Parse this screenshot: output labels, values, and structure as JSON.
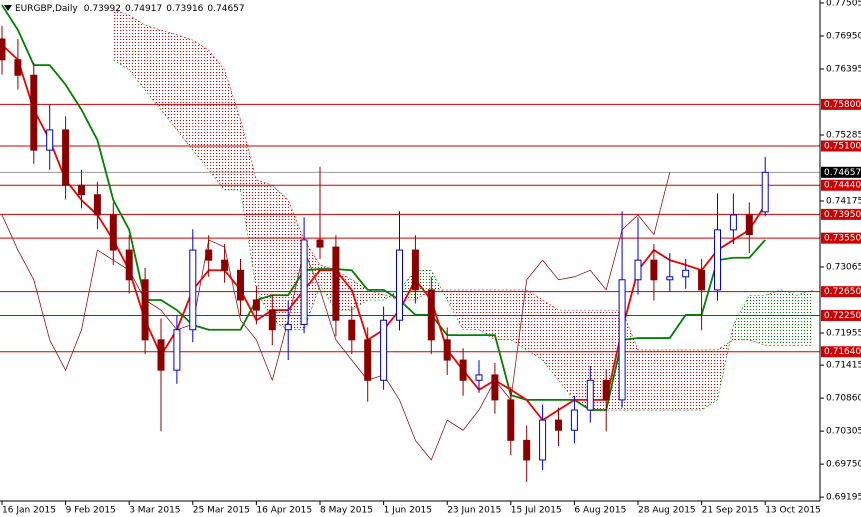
{
  "chart_data": {
    "type": "candlestick",
    "title": "EURGBP,Daily",
    "categories": [
      "16 Jan 2015",
      null,
      null,
      null,
      "9 Feb 2015",
      null,
      null,
      null,
      "3 Mar 2015",
      null,
      null,
      null,
      "25 Mar 2015",
      null,
      null,
      null,
      "16 Apr 2015",
      null,
      null,
      null,
      "8 May 2015",
      null,
      null,
      null,
      "1 Jun 2015",
      null,
      null,
      null,
      "23 Jun 2015",
      null,
      null,
      null,
      "15 Jul 2015",
      null,
      null,
      null,
      "6 Aug 2015",
      null,
      null,
      null,
      "28 Aug 2015",
      null,
      null,
      null,
      "21 Sep 2015",
      null,
      null,
      null,
      "13 Oct 2015",
      null,
      null,
      null
    ],
    "open": [
      0.769,
      0.7655,
      0.7629,
      0.7503,
      0.7537,
      0.7444,
      0.7428,
      0.7394,
      0.7335,
      0.7285,
      0.7184,
      0.7133,
      0.7201,
      0.7335,
      0.7318,
      0.7301,
      0.7251,
      0.7234,
      0.7201,
      0.721,
      0.7352,
      0.734,
      0.7217,
      0.7184,
      0.7116,
      0.7217,
      0.7335,
      0.7268,
      0.7184,
      0.715,
      0.7116,
      0.7125,
      0.7083,
      0.7015,
      0.6982,
      0.7049,
      0.7032,
      0.7066,
      0.7116,
      0.7083,
      0.7285,
      0.7318,
      0.7285,
      0.729,
      0.7301,
      0.7268,
      0.7369,
      0.7394,
      0.73992,
      null,
      null,
      null
    ],
    "high": [
      0.7712,
      0.769,
      0.765,
      0.758,
      0.756,
      0.747,
      0.745,
      0.7415,
      0.736,
      0.7305,
      0.722,
      0.7225,
      0.737,
      0.736,
      0.7345,
      0.732,
      0.7275,
      0.726,
      0.725,
      0.739,
      0.7475,
      0.736,
      0.724,
      0.7205,
      0.724,
      0.74,
      0.736,
      0.729,
      0.7205,
      0.717,
      0.715,
      0.7145,
      0.7105,
      0.704,
      0.7075,
      0.707,
      0.709,
      0.714,
      0.7135,
      0.74,
      0.739,
      0.7345,
      0.733,
      0.732,
      0.732,
      0.743,
      0.743,
      0.7415,
      0.74917,
      null,
      null,
      null
    ],
    "low": [
      0.763,
      0.7605,
      0.748,
      0.747,
      0.742,
      0.7405,
      0.737,
      0.731,
      0.7262,
      0.716,
      0.703,
      0.711,
      0.718,
      0.729,
      0.728,
      0.7225,
      0.721,
      0.7175,
      0.715,
      0.7195,
      0.732,
      0.719,
      0.716,
      0.708,
      0.71,
      0.72,
      0.7245,
      0.716,
      0.7125,
      0.709,
      0.7095,
      0.706,
      0.699,
      0.6945,
      0.6965,
      0.7005,
      0.701,
      0.7045,
      0.703,
      0.707,
      0.726,
      0.725,
      0.7265,
      0.727,
      0.72,
      0.725,
      0.7345,
      0.733,
      0.73916,
      null,
      null,
      null
    ],
    "close": [
      0.7655,
      0.7629,
      0.7503,
      0.7537,
      0.7444,
      0.7428,
      0.7394,
      0.7335,
      0.7285,
      0.7184,
      0.7133,
      0.7201,
      0.7335,
      0.7318,
      0.7301,
      0.7251,
      0.7234,
      0.7201,
      0.721,
      0.7352,
      0.734,
      0.7217,
      0.7184,
      0.7116,
      0.7217,
      0.7335,
      0.7268,
      0.7184,
      0.715,
      0.7116,
      0.7125,
      0.7083,
      0.7015,
      0.6982,
      0.7049,
      0.7032,
      0.7066,
      0.7116,
      0.7083,
      0.7285,
      0.7318,
      0.7285,
      0.729,
      0.7301,
      0.7268,
      0.7369,
      0.7394,
      0.7361,
      0.74657,
      null,
      null,
      null
    ],
    "up_color": "#0000cd",
    "down_color": "#8b0000",
    "tenkan": {
      "color": "#ee0000",
      "values": [
        0.768,
        0.7655,
        0.7571,
        0.752,
        0.7453,
        0.7419,
        0.7394,
        0.7352,
        0.7301,
        0.7217,
        0.7158,
        0.7201,
        0.7268,
        0.7301,
        0.7301,
        0.7268,
        0.7217,
        0.7234,
        0.7234,
        0.7268,
        0.7301,
        0.7301,
        0.7268,
        0.7184,
        0.7201,
        0.7234,
        0.7285,
        0.7251,
        0.7167,
        0.7133,
        0.71,
        0.7116,
        0.71,
        0.7083,
        0.7049,
        0.7066,
        0.7083,
        0.7083,
        0.7083,
        0.7201,
        0.7301,
        0.7335,
        0.7318,
        0.731,
        0.7301,
        0.7335,
        0.7352,
        0.7369,
        0.7411,
        null,
        null,
        null
      ]
    },
    "kijun": {
      "color": "#008000",
      "values": [
        0.7747,
        0.7705,
        0.7646,
        0.7646,
        0.7613,
        0.7571,
        0.752,
        0.7419,
        0.7369,
        0.7251,
        0.7251,
        0.7234,
        0.7209,
        0.7201,
        0.7201,
        0.7201,
        0.7251,
        0.7259,
        0.7259,
        0.7301,
        0.7303,
        0.7303,
        0.7301,
        0.7268,
        0.7268,
        0.7251,
        0.7226,
        0.7226,
        0.7192,
        0.7192,
        0.7192,
        0.7192,
        0.7091,
        0.7083,
        0.7083,
        0.7083,
        0.7083,
        0.7066,
        0.7066,
        0.7184,
        0.7187,
        0.7187,
        0.7187,
        0.7226,
        0.7226,
        0.7318,
        0.7322,
        0.7322,
        0.7352,
        null,
        null,
        null
      ]
    },
    "chikou": {
      "color": "#8b1a1a",
      "values": [
        0.7394,
        0.7335,
        0.7285,
        0.7184,
        0.7133,
        0.7201,
        0.7335,
        0.7318,
        0.7301,
        0.7251,
        0.7234,
        0.7201,
        0.721,
        0.7352,
        0.734,
        0.7217,
        0.7184,
        0.7116,
        0.7217,
        0.7335,
        0.7268,
        0.7184,
        0.715,
        0.7116,
        0.7125,
        0.7083,
        0.7015,
        0.6982,
        0.7049,
        0.7032,
        0.7066,
        0.7116,
        0.7083,
        0.7285,
        0.7318,
        0.7285,
        0.729,
        0.7301,
        0.7268,
        0.7369,
        0.7394,
        0.7361,
        0.74657,
        null,
        null,
        null,
        null,
        null,
        null,
        null,
        null,
        null
      ]
    },
    "cloud": {
      "spanA": [
        null,
        null,
        null,
        null,
        null,
        null,
        null,
        0.7655,
        0.7638,
        0.7604,
        0.7571,
        0.7537,
        0.7503,
        0.747,
        0.7436,
        0.7436,
        0.7268,
        0.7217,
        0.7201,
        0.7201,
        0.7276,
        0.7234,
        0.7234,
        0.7251,
        0.7251,
        0.7268,
        0.7301,
        0.7301,
        0.7251,
        0.7201,
        0.7201,
        0.7184,
        0.7184,
        0.7167,
        0.715,
        0.7116,
        0.7083,
        0.7066,
        0.7066,
        0.7066,
        0.7066,
        0.7066,
        0.7066,
        0.7066,
        0.7066,
        0.7083,
        0.7209,
        0.7259,
        0.7259,
        0.7268,
        0.7259,
        0.7268
      ],
      "spanB": [
        null,
        null,
        null,
        null,
        null,
        null,
        null,
        0.7739,
        0.773,
        0.7713,
        0.7705,
        0.7697,
        0.7688,
        0.7671,
        0.7638,
        0.7554,
        0.7453,
        0.7444,
        0.7419,
        0.7352,
        0.731,
        0.7301,
        0.7285,
        0.7268,
        0.726,
        0.7251,
        0.7251,
        0.7268,
        0.7268,
        0.7268,
        0.7268,
        0.7268,
        0.7268,
        0.7268,
        0.7251,
        0.7234,
        0.7234,
        0.7234,
        0.7234,
        0.7234,
        0.7167,
        0.7167,
        0.7167,
        0.7167,
        0.7167,
        0.7167,
        0.7184,
        0.7184,
        0.7175,
        0.7175,
        0.7175,
        0.7175
      ],
      "up_color": "#008000",
      "down_color": "#dd0000"
    },
    "levels": [
      {
        "value": 0.758,
        "label": "0.75800"
      },
      {
        "value": 0.751,
        "label": "0.75100"
      },
      {
        "value": 0.7444,
        "label": "0.74440"
      },
      {
        "value": 0.7395,
        "label": "0.73950"
      },
      {
        "value": 0.7355,
        "label": "0.73550"
      },
      {
        "value": 0.7265,
        "label": "0.72650"
      },
      {
        "value": 0.7225,
        "label": "0.72250"
      },
      {
        "value": 0.7164,
        "label": "0.71640"
      }
    ],
    "level_color": "#cc0000",
    "ylim": [
      0.6913,
      0.77555
    ],
    "yticks": [
      0.77505,
      {
        "value": 0.7695,
        "label": "0.76950"
      },
      0.76395,
      0.75285,
      0.74175,
      0.73065,
      0.71955,
      0.71415,
      {
        "value": 0.7086,
        "label": "0.70860"
      },
      0.70305,
      {
        "value": 0.6975,
        "label": "0.69750"
      },
      0.69195
    ],
    "grid": false
  }
}
